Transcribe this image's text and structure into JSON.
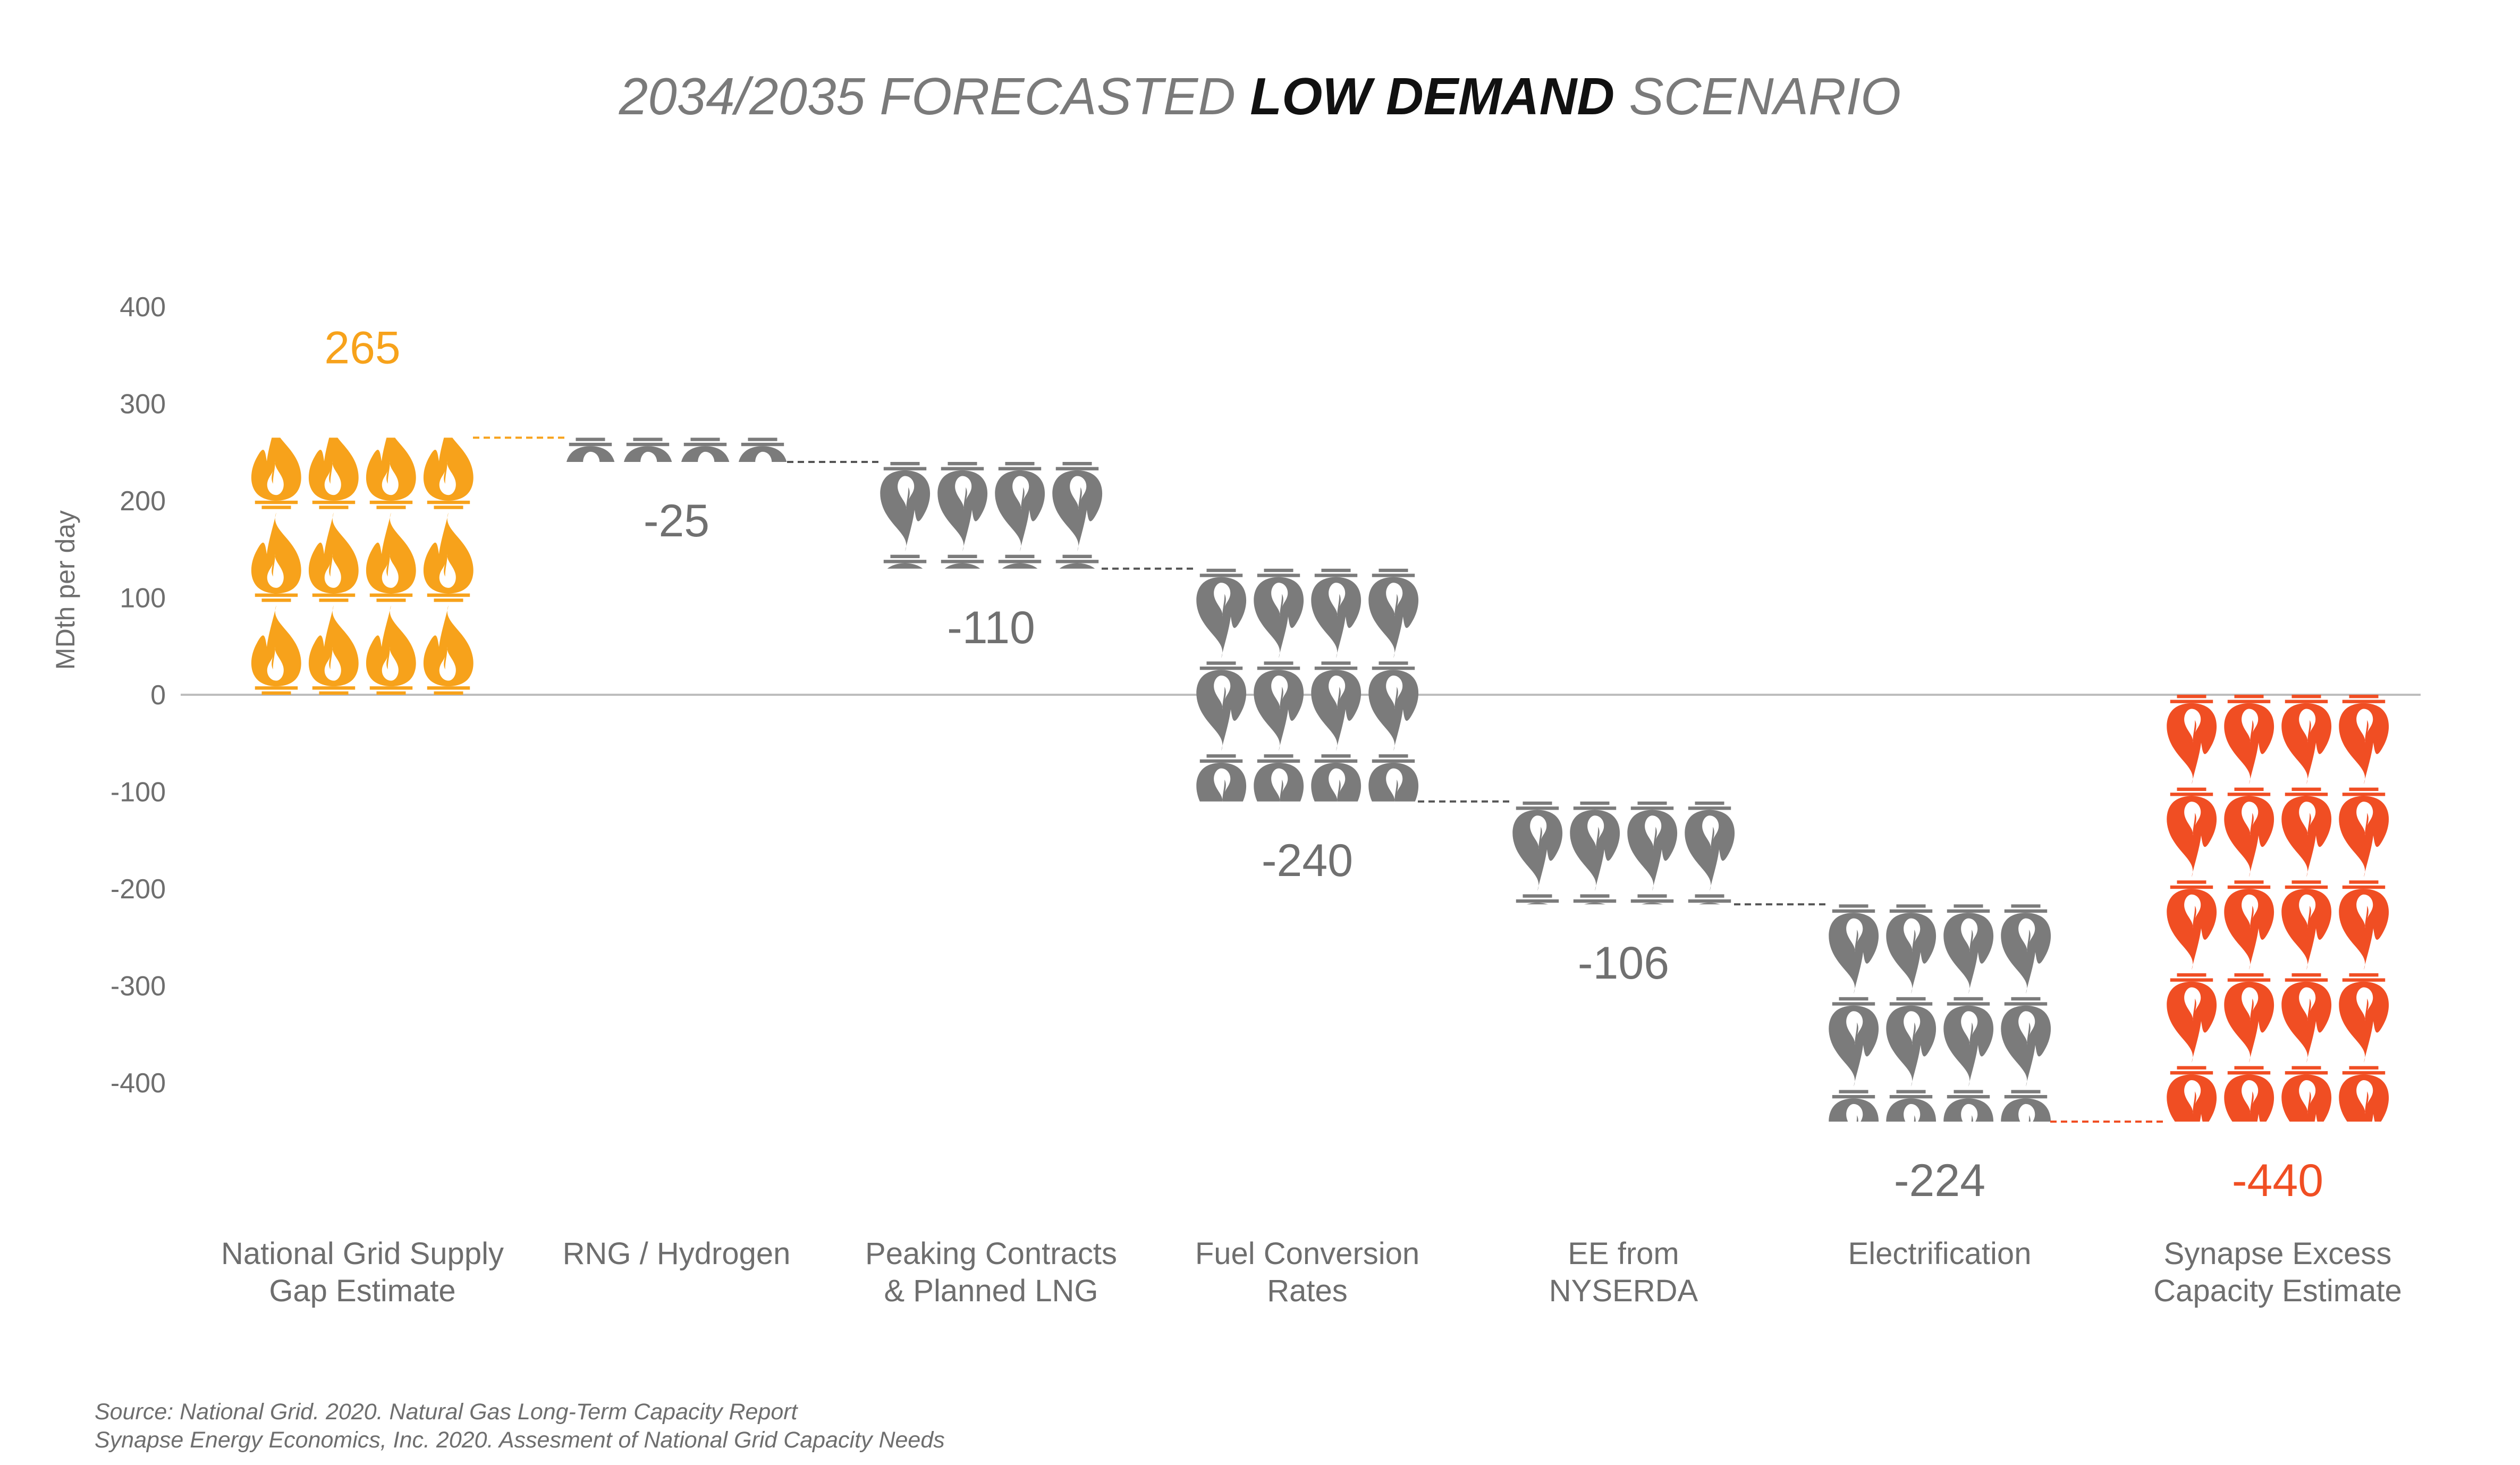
{
  "chart_data": {
    "type": "bar",
    "subtype": "waterfall-pictogram",
    "title": {
      "prefix": "2034/2035 FORECASTED ",
      "emphasis": "LOW DEMAND",
      "suffix": " SCENARIO"
    },
    "ylabel": "MDth per day",
    "ylim": [
      -440,
      400
    ],
    "yticks": [
      400,
      300,
      200,
      100,
      0,
      -100,
      -200,
      -300,
      -400
    ],
    "grid": false,
    "legend": "none",
    "categories": [
      [
        "National Grid Supply",
        "Gap Estimate"
      ],
      [
        "RNG / Hydrogen"
      ],
      [
        "Peaking Contracts",
        "& Planned LNG"
      ],
      [
        "Fuel Conversion",
        "Rates"
      ],
      [
        "EE from",
        "NYSERDA"
      ],
      [
        "Electrification"
      ],
      [
        "Synapse Excess",
        "Capacity Estimate"
      ]
    ],
    "values": [
      265,
      -25,
      -110,
      -240,
      -106,
      -224,
      -440
    ],
    "value_labels": [
      "265",
      "-25",
      "-110",
      "-240",
      "-106",
      "-224",
      "-440"
    ],
    "bar_kind": [
      "total",
      "delta",
      "delta",
      "delta",
      "delta",
      "delta",
      "total"
    ],
    "colors": {
      "start": "#F7A21B",
      "decrease": "#7B7B7B",
      "end": "#F04E23",
      "value_start": "#F7A21B",
      "value_decrease": "#707070",
      "value_end": "#F04E23",
      "connector_start": "#F7A21B",
      "connector_decrease": "#555555",
      "connector_end": "#F04E23",
      "zero_line": "#bdbdbd"
    },
    "icon": "gas-flame-icon",
    "icons_per_row": 4
  },
  "source": [
    "Source: National Grid. 2020. Natural Gas Long-Term Capacity Report",
    "Synapse Energy Economics, Inc. 2020. Assesment of National Grid Capacity Needs"
  ]
}
